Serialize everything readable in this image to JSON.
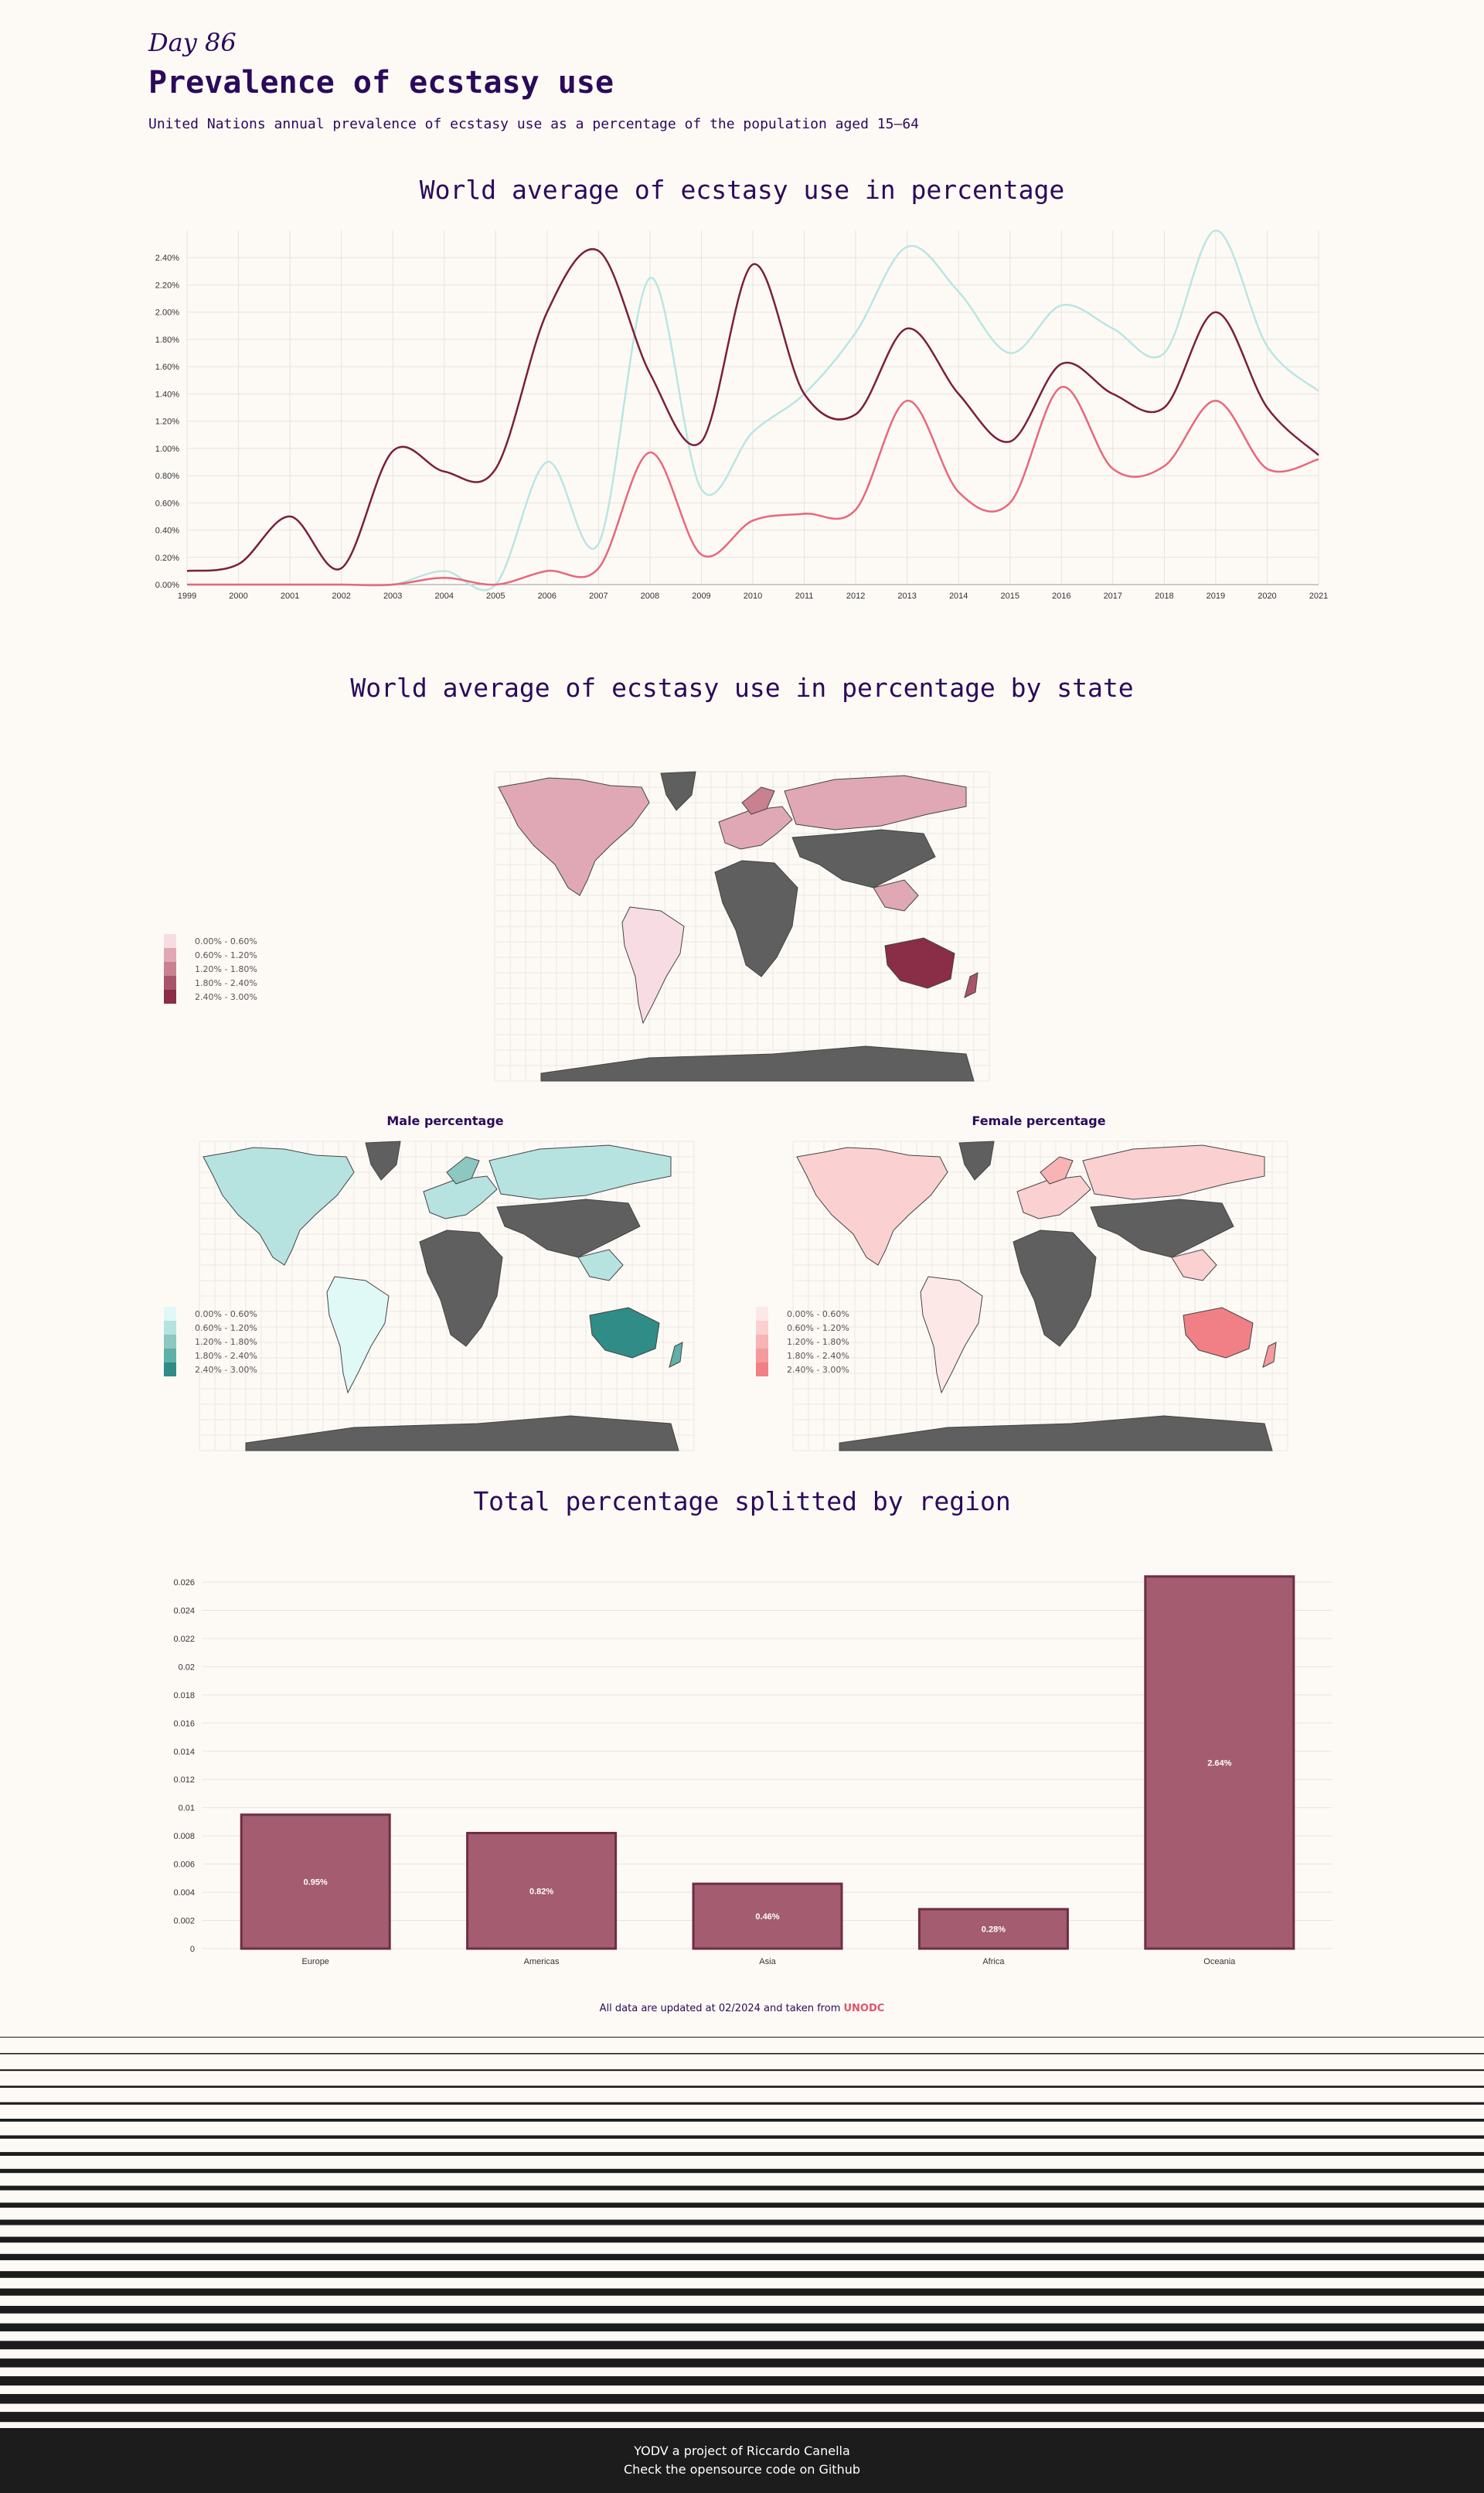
{
  "header": {
    "day": "Day 86",
    "title": "Prevalence of ecstasy use",
    "subtitle": "United Nations annual prevalence of ecstasy use as a percentage of the population aged 15–64"
  },
  "sections": {
    "line_title": "World average of ecstasy use in percentage",
    "map_title": "World average of ecstasy use in percentage by state",
    "male_title": "Male percentage",
    "female_title": "Female percentage",
    "bar_title": "Total percentage splitted by region"
  },
  "legend_labels": [
    "0.00% - 0.60%",
    "0.60% - 1.20%",
    "1.20% - 1.80%",
    "1.80% - 2.40%",
    "2.40% - 3.00%"
  ],
  "colors": {
    "total_scale": [
      "#f7dce4",
      "#e0a8b4",
      "#c9808f",
      "#a8546a",
      "#8a2d47"
    ],
    "male_scale": [
      "#e0f8f6",
      "#b6e3df",
      "#8cc8bf",
      "#5fb0a6",
      "#2f8c86"
    ],
    "female_scale": [
      "#fde8e8",
      "#fbd0d0",
      "#f8b3b5",
      "#f49a9d",
      "#f08085"
    ],
    "no_data": "#5f5f5f",
    "line_total": "#7a1f3d",
    "line_male": "#b9e6e2",
    "line_female": "#e8677b",
    "bar_fill": "#a35c70",
    "bar_stroke": "#6e2e44"
  },
  "chart_data": [
    {
      "type": "line",
      "title": "World average of ecstasy use in percentage",
      "x": [
        1999,
        2000,
        2001,
        2002,
        2003,
        2004,
        2005,
        2006,
        2007,
        2008,
        2009,
        2010,
        2011,
        2012,
        2013,
        2014,
        2015,
        2016,
        2017,
        2018,
        2019,
        2020,
        2021
      ],
      "series": [
        {
          "values": [
            0.1,
            0.15,
            0.5,
            0.12,
            0.98,
            0.83,
            0.85,
            2.0,
            2.45,
            1.55,
            1.05,
            2.35,
            1.4,
            1.25,
            1.88,
            1.4,
            1.05,
            1.62,
            1.4,
            1.3,
            2.0,
            1.3,
            0.95
          ]
        },
        {
          "values": [
            0.0,
            0.0,
            0.0,
            0.0,
            0.0,
            0.1,
            0.0,
            0.9,
            0.3,
            2.25,
            0.7,
            1.12,
            1.4,
            1.85,
            2.48,
            2.15,
            1.7,
            2.05,
            1.88,
            1.7,
            2.6,
            1.75,
            1.42
          ]
        },
        {
          "values": [
            0.0,
            0.0,
            0.0,
            0.0,
            0.0,
            0.05,
            0.0,
            0.1,
            0.12,
            0.97,
            0.22,
            0.47,
            0.52,
            0.55,
            1.35,
            0.68,
            0.6,
            1.45,
            0.85,
            0.87,
            1.35,
            0.85,
            0.92
          ]
        }
      ],
      "ylim": [
        0,
        2.6
      ],
      "yticks": [
        "0.00%",
        "0.20%",
        "0.40%",
        "0.60%",
        "0.80%",
        "1.00%",
        "1.20%",
        "1.40%",
        "1.60%",
        "1.80%",
        "2.00%",
        "2.20%",
        "2.40%"
      ],
      "grid": true
    },
    {
      "type": "bar",
      "title": "Total percentage splitted by region",
      "categories": [
        "Europe",
        "Americas",
        "Asia",
        "Africa",
        "Oceania"
      ],
      "values": [
        0.0095,
        0.0082,
        0.0046,
        0.0028,
        0.0264
      ],
      "data_labels": [
        "0.95%",
        "0.82%",
        "0.46%",
        "0.28%",
        "2.64%"
      ],
      "yticks": [
        "0",
        "0.002",
        "0.004",
        "0.006",
        "0.008",
        "0.01",
        "0.012",
        "0.014",
        "0.016",
        "0.018",
        "0.02",
        "0.022",
        "0.024",
        "0.026"
      ],
      "ylim": [
        0,
        0.026
      ],
      "grid": true
    }
  ],
  "footer": {
    "note_prefix": "All data are updated at 02/2024 and taken from ",
    "note_link": "UNODC",
    "line1": "YODV a project of Riccardo Canella",
    "line2": "Check the opensource code on Github"
  }
}
